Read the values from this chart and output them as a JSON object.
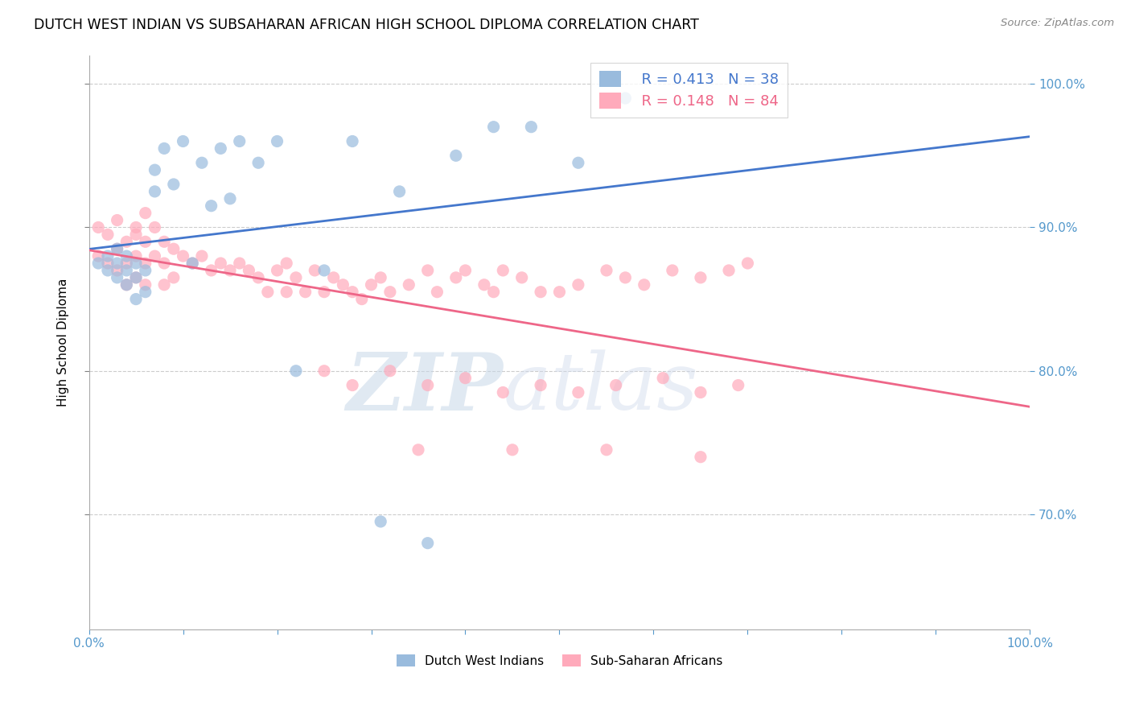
{
  "title": "DUTCH WEST INDIAN VS SUBSAHARAN AFRICAN HIGH SCHOOL DIPLOMA CORRELATION CHART",
  "source": "Source: ZipAtlas.com",
  "ylabel": "High School Diploma",
  "xlim": [
    0.0,
    1.0
  ],
  "ylim": [
    0.62,
    1.02
  ],
  "xticks": [
    0.0,
    0.1,
    0.2,
    0.3,
    0.4,
    0.5,
    0.6,
    0.7,
    0.8,
    0.9,
    1.0
  ],
  "xticklabels": [
    "0.0%",
    "",
    "",
    "",
    "",
    "",
    "",
    "",
    "",
    "",
    "100.0%"
  ],
  "ytick_positions": [
    0.7,
    0.8,
    0.9,
    1.0
  ],
  "yticklabels": [
    "70.0%",
    "80.0%",
    "90.0%",
    "100.0%"
  ],
  "blue_R": 0.413,
  "blue_N": 38,
  "pink_R": 0.148,
  "pink_N": 84,
  "blue_color": "#99BBDD",
  "pink_color": "#FFAABB",
  "blue_line_color": "#4477CC",
  "pink_line_color": "#EE6688",
  "watermark_zip": "ZIP",
  "watermark_atlas": "atlas",
  "legend_label_blue": "Dutch West Indians",
  "legend_label_pink": "Sub-Saharan Africans",
  "blue_scatter_x": [
    0.01,
    0.02,
    0.02,
    0.03,
    0.03,
    0.03,
    0.04,
    0.04,
    0.04,
    0.05,
    0.05,
    0.05,
    0.06,
    0.06,
    0.07,
    0.07,
    0.08,
    0.09,
    0.1,
    0.11,
    0.12,
    0.13,
    0.14,
    0.15,
    0.16,
    0.18,
    0.2,
    0.22,
    0.25,
    0.28,
    0.31,
    0.33,
    0.36,
    0.39,
    0.43,
    0.47,
    0.52,
    0.57
  ],
  "blue_scatter_y": [
    0.875,
    0.88,
    0.87,
    0.865,
    0.875,
    0.885,
    0.86,
    0.87,
    0.88,
    0.85,
    0.865,
    0.875,
    0.855,
    0.87,
    0.925,
    0.94,
    0.955,
    0.93,
    0.96,
    0.875,
    0.945,
    0.915,
    0.955,
    0.92,
    0.96,
    0.945,
    0.96,
    0.8,
    0.87,
    0.96,
    0.695,
    0.925,
    0.68,
    0.95,
    0.97,
    0.97,
    0.945,
    0.99
  ],
  "pink_scatter_x": [
    0.01,
    0.01,
    0.02,
    0.02,
    0.03,
    0.03,
    0.03,
    0.04,
    0.04,
    0.04,
    0.05,
    0.05,
    0.05,
    0.05,
    0.06,
    0.06,
    0.06,
    0.06,
    0.07,
    0.07,
    0.08,
    0.08,
    0.08,
    0.09,
    0.09,
    0.1,
    0.11,
    0.12,
    0.13,
    0.14,
    0.15,
    0.16,
    0.17,
    0.18,
    0.19,
    0.2,
    0.21,
    0.21,
    0.22,
    0.23,
    0.24,
    0.25,
    0.26,
    0.27,
    0.28,
    0.29,
    0.3,
    0.31,
    0.32,
    0.34,
    0.36,
    0.37,
    0.39,
    0.4,
    0.42,
    0.43,
    0.44,
    0.46,
    0.48,
    0.5,
    0.52,
    0.55,
    0.57,
    0.59,
    0.62,
    0.65,
    0.68,
    0.7,
    0.25,
    0.28,
    0.32,
    0.36,
    0.4,
    0.44,
    0.48,
    0.52,
    0.56,
    0.61,
    0.65,
    0.69,
    0.35,
    0.45,
    0.55,
    0.65
  ],
  "pink_scatter_y": [
    0.9,
    0.88,
    0.895,
    0.875,
    0.905,
    0.885,
    0.87,
    0.89,
    0.875,
    0.86,
    0.9,
    0.88,
    0.895,
    0.865,
    0.91,
    0.89,
    0.875,
    0.86,
    0.9,
    0.88,
    0.89,
    0.875,
    0.86,
    0.885,
    0.865,
    0.88,
    0.875,
    0.88,
    0.87,
    0.875,
    0.87,
    0.875,
    0.87,
    0.865,
    0.855,
    0.87,
    0.875,
    0.855,
    0.865,
    0.855,
    0.87,
    0.855,
    0.865,
    0.86,
    0.855,
    0.85,
    0.86,
    0.865,
    0.855,
    0.86,
    0.87,
    0.855,
    0.865,
    0.87,
    0.86,
    0.855,
    0.87,
    0.865,
    0.855,
    0.855,
    0.86,
    0.87,
    0.865,
    0.86,
    0.87,
    0.865,
    0.87,
    0.875,
    0.8,
    0.79,
    0.8,
    0.79,
    0.795,
    0.785,
    0.79,
    0.785,
    0.79,
    0.795,
    0.785,
    0.79,
    0.745,
    0.745,
    0.745,
    0.74
  ]
}
